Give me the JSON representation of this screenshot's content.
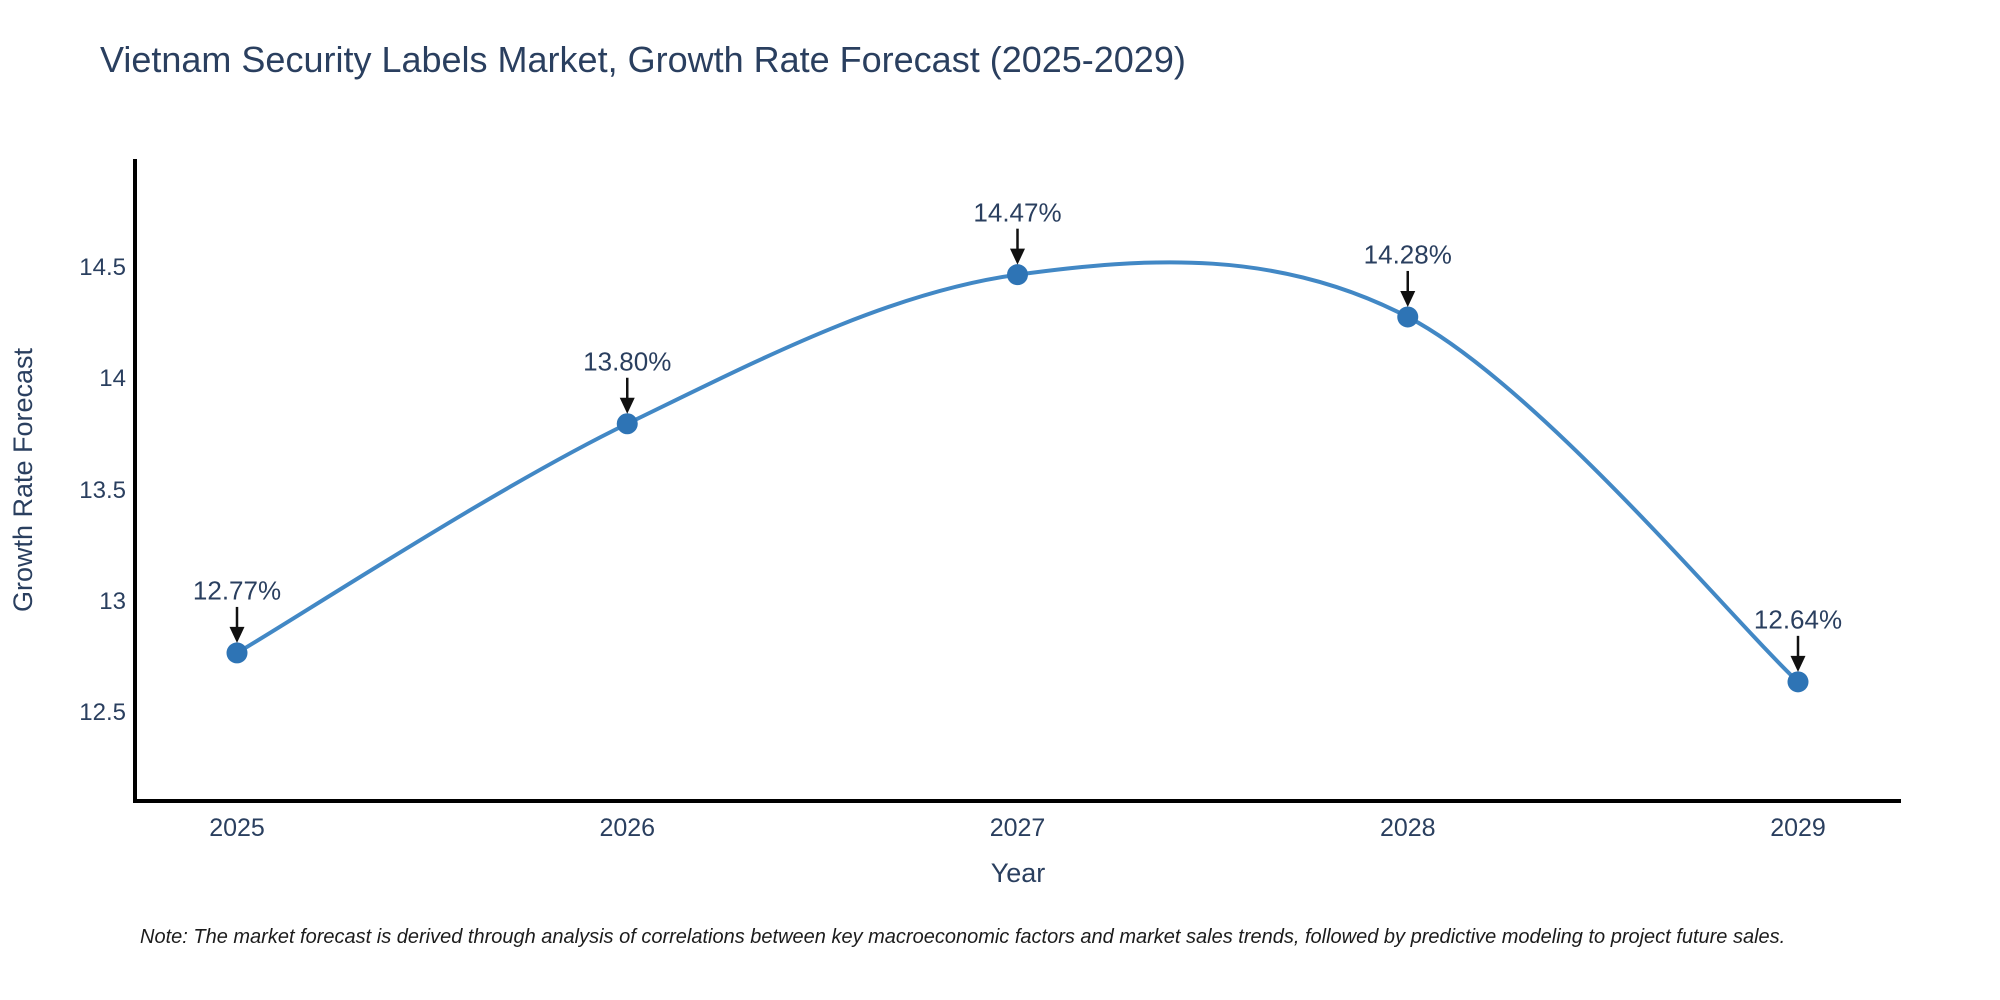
{
  "chart": {
    "title": "Vietnam Security Labels Market, Growth Rate Forecast (2025-2029)",
    "xlabel": "Year",
    "ylabel": "Growth Rate Forecast",
    "note": "Note: The market forecast is derived through analysis of correlations between key macroeconomic factors and market sales trends, followed by predictive modeling to project future sales."
  },
  "chart_data": {
    "type": "line",
    "line_shape": "spline",
    "categories": [
      "2025",
      "2026",
      "2027",
      "2028",
      "2029"
    ],
    "values": [
      12.77,
      13.8,
      14.47,
      14.28,
      12.64
    ],
    "point_labels": [
      "12.77%",
      "13.80%",
      "14.47%",
      "14.28%",
      "12.64%"
    ],
    "title": "Vietnam Security Labels Market, Growth Rate Forecast (2025-2029)",
    "xlabel": "Year",
    "ylabel": "Growth Rate Forecast",
    "y_ticks": [
      14.5,
      14,
      13.5,
      13,
      12.5
    ],
    "y_tick_labels": [
      "14.5",
      "14",
      "13.5",
      "13",
      "12.5"
    ],
    "ylim": [
      12.1,
      15.0
    ],
    "grid": false,
    "legend": false,
    "annotations_have_arrows": true,
    "colors": {
      "line": "#4288c5",
      "marker": "#2e74b5",
      "arrow": "#111111",
      "axis": "#000000",
      "text": "#2a3f5f",
      "note_text": "#1c1c1c",
      "background": "#ffffff"
    }
  }
}
